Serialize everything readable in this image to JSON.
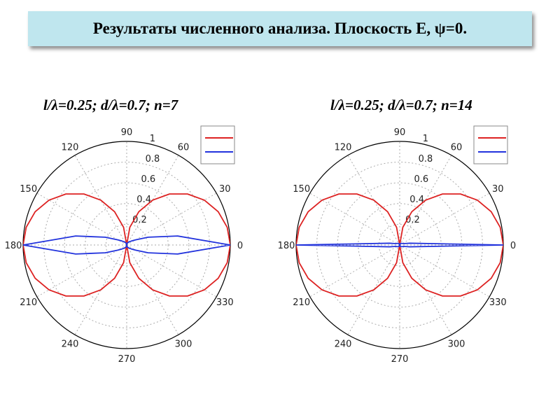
{
  "title": "Результаты численного анализа. Плоскость Е, ψ=0.",
  "chart_data": [
    {
      "type": "polar-line",
      "title": "l/λ=0.25; d/λ=0.7; n=7",
      "rlim": [
        0,
        1
      ],
      "radial_ticks": [
        "0.2",
        "0.4",
        "0.6",
        "0.8",
        "1"
      ],
      "angle_ticks": [
        "0",
        "30",
        "60",
        "90",
        "120",
        "150",
        "180",
        "210",
        "240",
        "270",
        "300",
        "330"
      ],
      "angles_deg": [
        0,
        10,
        20,
        30,
        40,
        50,
        60,
        70,
        80,
        90,
        100,
        110,
        120,
        130,
        140,
        150,
        160,
        170,
        180,
        190,
        200,
        210,
        220,
        230,
        240,
        250,
        260,
        270,
        280,
        290,
        300,
        310,
        320,
        330,
        340,
        350,
        360
      ],
      "grid": true,
      "legend_position": "top-right",
      "series": [
        {
          "color": "#dd2222",
          "values": [
            1.0,
            0.985,
            0.94,
            0.866,
            0.766,
            0.643,
            0.5,
            0.342,
            0.174,
            0.0,
            0.174,
            0.342,
            0.5,
            0.643,
            0.766,
            0.866,
            0.94,
            0.985,
            1.0,
            0.985,
            0.94,
            0.866,
            0.766,
            0.643,
            0.5,
            0.342,
            0.174,
            0.0,
            0.174,
            0.342,
            0.5,
            0.643,
            0.766,
            0.866,
            0.94,
            0.985,
            1.0
          ]
        },
        {
          "color": "#2233dd",
          "values": [
            1.0,
            0.5,
            0.22,
            0.1,
            0.06,
            0.04,
            0.03,
            0.02,
            0.01,
            0.0,
            0.01,
            0.02,
            0.03,
            0.04,
            0.06,
            0.1,
            0.22,
            0.5,
            1.0,
            0.5,
            0.22,
            0.1,
            0.06,
            0.04,
            0.03,
            0.02,
            0.01,
            0.0,
            0.01,
            0.02,
            0.03,
            0.04,
            0.06,
            0.1,
            0.22,
            0.5,
            1.0
          ]
        }
      ]
    },
    {
      "type": "polar-line",
      "title": "l/λ=0.25; d/λ=0.7; n=14",
      "rlim": [
        0,
        1
      ],
      "radial_ticks": [
        "0.2",
        "0.4",
        "0.6",
        "0.8",
        "1"
      ],
      "angle_ticks": [
        "0",
        "30",
        "60",
        "90",
        "120",
        "150",
        "180",
        "210",
        "240",
        "270",
        "300",
        "330"
      ],
      "angles_deg": [
        0,
        10,
        20,
        30,
        40,
        50,
        60,
        70,
        80,
        90,
        100,
        110,
        120,
        130,
        140,
        150,
        160,
        170,
        180,
        190,
        200,
        210,
        220,
        230,
        240,
        250,
        260,
        270,
        280,
        290,
        300,
        310,
        320,
        330,
        340,
        350,
        360
      ],
      "grid": true,
      "legend_position": "top-right",
      "series": [
        {
          "color": "#dd2222",
          "values": [
            1.0,
            0.985,
            0.94,
            0.866,
            0.766,
            0.643,
            0.5,
            0.342,
            0.174,
            0.0,
            0.174,
            0.342,
            0.5,
            0.643,
            0.766,
            0.866,
            0.94,
            0.985,
            1.0,
            0.985,
            0.94,
            0.866,
            0.766,
            0.643,
            0.5,
            0.342,
            0.174,
            0.0,
            0.174,
            0.342,
            0.5,
            0.643,
            0.766,
            0.866,
            0.94,
            0.985,
            1.0
          ]
        },
        {
          "color": "#2233dd",
          "values": [
            1.0,
            0.1,
            0.04,
            0.03,
            0.025,
            0.02,
            0.015,
            0.01,
            0.005,
            0.0,
            0.005,
            0.01,
            0.015,
            0.02,
            0.025,
            0.03,
            0.04,
            0.1,
            1.0,
            0.1,
            0.04,
            0.03,
            0.025,
            0.02,
            0.015,
            0.01,
            0.005,
            0.0,
            0.005,
            0.01,
            0.015,
            0.02,
            0.025,
            0.03,
            0.04,
            0.1,
            1.0
          ]
        }
      ]
    }
  ]
}
